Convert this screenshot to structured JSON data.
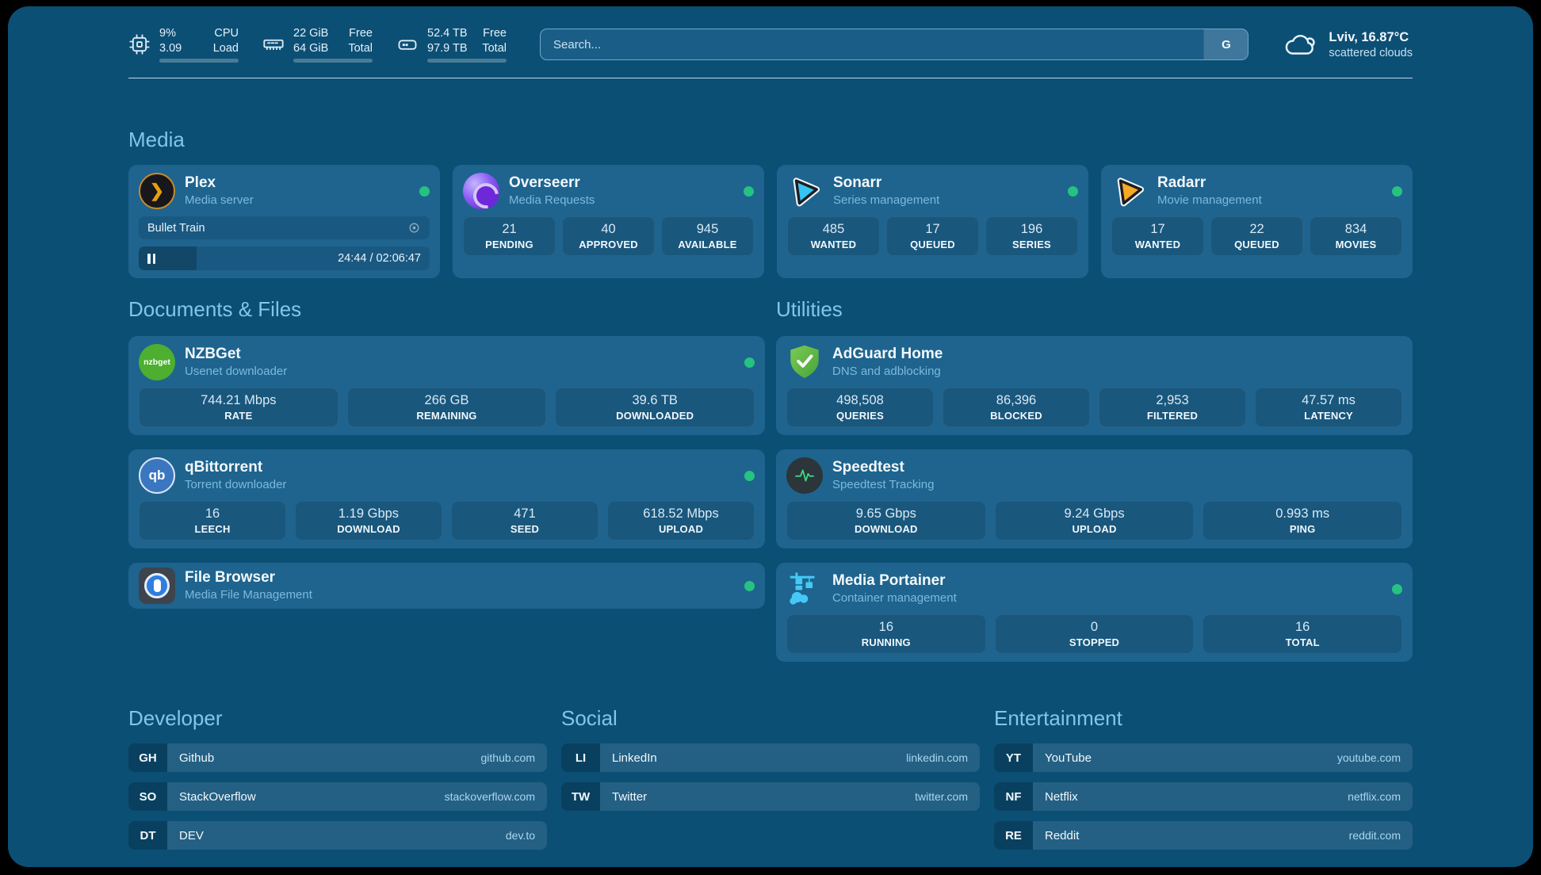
{
  "colors": {
    "background": "#0C4F75",
    "card": "#1E648E",
    "section_header": "#84C5E9",
    "status_online": "#26C281",
    "plex_gold": "#E5A00D",
    "sonarr_blue": "#35C5F4",
    "radarr_orange": "#F7A824",
    "adguard_green": "#67B32E",
    "portainer_blue": "#45C8F5",
    "qbittorrent_blue": "#3B77C0",
    "nzbget_green": "#4CAF2F",
    "speedtest_pulse": "#3DDC84"
  },
  "topbar": {
    "stats": [
      {
        "icon": "cpu-icon",
        "values": [
          "9%",
          "3.09"
        ],
        "labels": [
          "CPU",
          "Load"
        ],
        "progress": 9
      },
      {
        "icon": "ram-icon",
        "values": [
          "22 GiB",
          "64 GiB"
        ],
        "labels": [
          "Free",
          "Total"
        ],
        "progress": 65
      },
      {
        "icon": "disk-icon",
        "values": [
          "52.4 TB",
          "97.9 TB"
        ],
        "labels": [
          "Free",
          "Total"
        ],
        "progress": 46
      }
    ],
    "search": {
      "placeholder": "Search...",
      "engine": "G"
    },
    "weather": {
      "summary": "Lviv, 16.87°C",
      "condition": "scattered clouds"
    }
  },
  "sections": {
    "media": {
      "title": "Media",
      "plex": {
        "name": "Plex",
        "description": "Media server",
        "online": true,
        "now_playing": {
          "title": "Bullet Train",
          "time": "24:44 / 02:06:47",
          "progress": 20
        }
      },
      "overseerr": {
        "name": "Overseerr",
        "description": "Media Requests",
        "online": true,
        "stats": [
          {
            "value": "21",
            "label": "PENDING"
          },
          {
            "value": "40",
            "label": "APPROVED"
          },
          {
            "value": "945",
            "label": "AVAILABLE"
          }
        ]
      },
      "sonarr": {
        "name": "Sonarr",
        "description": "Series management",
        "online": true,
        "stats": [
          {
            "value": "485",
            "label": "WANTED"
          },
          {
            "value": "17",
            "label": "QUEUED"
          },
          {
            "value": "196",
            "label": "SERIES"
          }
        ]
      },
      "radarr": {
        "name": "Radarr",
        "description": "Movie management",
        "online": true,
        "stats": [
          {
            "value": "17",
            "label": "WANTED"
          },
          {
            "value": "22",
            "label": "QUEUED"
          },
          {
            "value": "834",
            "label": "MOVIES"
          }
        ]
      }
    },
    "documents": {
      "title": "Documents & Files",
      "nzbget": {
        "name": "NZBGet",
        "description": "Usenet downloader",
        "online": true,
        "icon_text": "nzbget",
        "stats": [
          {
            "value": "744.21 Mbps",
            "label": "RATE"
          },
          {
            "value": "266 GB",
            "label": "REMAINING"
          },
          {
            "value": "39.6 TB",
            "label": "DOWNLOADED"
          }
        ]
      },
      "qbittorrent": {
        "name": "qBittorrent",
        "description": "Torrent downloader",
        "online": true,
        "icon_text": "qb",
        "stats": [
          {
            "value": "16",
            "label": "LEECH"
          },
          {
            "value": "1.19 Gbps",
            "label": "DOWNLOAD"
          },
          {
            "value": "471",
            "label": "SEED"
          },
          {
            "value": "618.52 Mbps",
            "label": "UPLOAD"
          }
        ]
      },
      "filebrowser": {
        "name": "File Browser",
        "description": "Media File Management",
        "online": true
      }
    },
    "utilities": {
      "title": "Utilities",
      "adguard": {
        "name": "AdGuard Home",
        "description": "DNS and adblocking",
        "online": false,
        "stats": [
          {
            "value": "498,508",
            "label": "QUERIES"
          },
          {
            "value": "86,396",
            "label": "BLOCKED"
          },
          {
            "value": "2,953",
            "label": "FILTERED"
          },
          {
            "value": "47.57 ms",
            "label": "LATENCY"
          }
        ]
      },
      "speedtest": {
        "name": "Speedtest",
        "description": "Speedtest Tracking",
        "online": false,
        "stats": [
          {
            "value": "9.65 Gbps",
            "label": "DOWNLOAD"
          },
          {
            "value": "9.24 Gbps",
            "label": "UPLOAD"
          },
          {
            "value": "0.993 ms",
            "label": "PING"
          }
        ]
      },
      "portainer": {
        "name": "Media Portainer",
        "description": "Container management",
        "online": true,
        "stats": [
          {
            "value": "16",
            "label": "RUNNING"
          },
          {
            "value": "0",
            "label": "STOPPED"
          },
          {
            "value": "16",
            "label": "TOTAL"
          }
        ]
      }
    },
    "developer": {
      "title": "Developer",
      "links": [
        {
          "abbr": "GH",
          "name": "Github",
          "url": "github.com"
        },
        {
          "abbr": "SO",
          "name": "StackOverflow",
          "url": "stackoverflow.com"
        },
        {
          "abbr": "DT",
          "name": "DEV",
          "url": "dev.to"
        }
      ]
    },
    "social": {
      "title": "Social",
      "links": [
        {
          "abbr": "LI",
          "name": "LinkedIn",
          "url": "linkedin.com"
        },
        {
          "abbr": "TW",
          "name": "Twitter",
          "url": "twitter.com"
        }
      ]
    },
    "entertainment": {
      "title": "Entertainment",
      "links": [
        {
          "abbr": "YT",
          "name": "YouTube",
          "url": "youtube.com"
        },
        {
          "abbr": "NF",
          "name": "Netflix",
          "url": "netflix.com"
        },
        {
          "abbr": "RE",
          "name": "Reddit",
          "url": "reddit.com"
        }
      ]
    }
  }
}
